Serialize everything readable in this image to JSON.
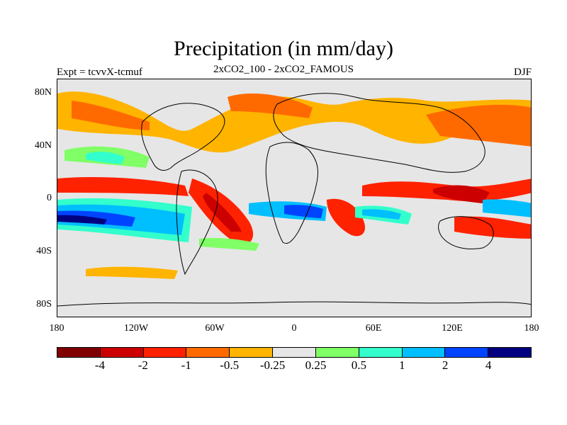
{
  "title": "Precipitation (in mm/day)",
  "left_label": "Expt = tcvvX-tcmuf",
  "center_label": "2xCO2_100 - 2xCO2_FAMOUS",
  "right_label": "DJF",
  "y_ticks": [
    "80N",
    "40N",
    "0",
    "40S",
    "80S"
  ],
  "x_ticks": [
    "180",
    "120W",
    "60W",
    "0",
    "60E",
    "120E",
    "180"
  ],
  "colorbar": {
    "colors": [
      "#800000",
      "#cc0000",
      "#ff2200",
      "#ff6a00",
      "#ffb400",
      "#e6e6e6",
      "#80ff66",
      "#33ffcc",
      "#00bfff",
      "#0044ff",
      "#000080"
    ],
    "labels": [
      "-4",
      "-2",
      "-1",
      "-0.5",
      "-0.25",
      "0.25",
      "0.5",
      "1",
      "2",
      "4"
    ]
  },
  "map_colors": {
    "background": "#e6e6e6",
    "coastline": "#000000"
  }
}
